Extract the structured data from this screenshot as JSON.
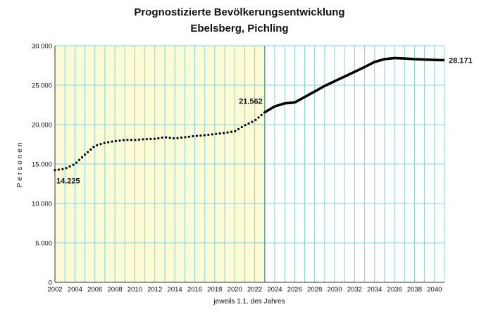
{
  "chart_data": {
    "type": "line",
    "title": "Prognostizierte Bevölkerungsentwicklung",
    "subtitle": "Ebelsberg, Pichling",
    "xlabel": "jeweils 1.1. des Jahres",
    "ylabel": "Personen",
    "xlim": [
      2002,
      2041
    ],
    "ylim": [
      0,
      30000
    ],
    "x_ticks": [
      "2002",
      "2004",
      "2006",
      "2008",
      "2010",
      "2012",
      "2014",
      "2016",
      "2018",
      "2020",
      "2022",
      "2024",
      "2026",
      "2028",
      "2030",
      "2032",
      "2034",
      "2036",
      "2038",
      "2040"
    ],
    "y_ticks": [
      "0",
      "5.000",
      "10.000",
      "15.000",
      "20.000",
      "25.000",
      "30.000"
    ],
    "grid": true,
    "shaded_region": {
      "x_start": 2002,
      "x_end": 2023,
      "color": "#fbfbd6"
    },
    "colors": {
      "grid": "#7fd6e0",
      "line": "#000000",
      "shade": "#fbfbd6"
    },
    "series": [
      {
        "style": "dotted",
        "x": [
          2002,
          2003,
          2004,
          2005,
          2006,
          2007,
          2008,
          2009,
          2010,
          2011,
          2012,
          2013,
          2014,
          2015,
          2016,
          2017,
          2018,
          2019,
          2020,
          2021,
          2022,
          2023
        ],
        "values": [
          14225,
          14400,
          15000,
          16200,
          17300,
          17700,
          17900,
          18050,
          18050,
          18150,
          18200,
          18400,
          18250,
          18400,
          18550,
          18650,
          18800,
          18950,
          19150,
          19900,
          20500,
          21562
        ]
      },
      {
        "style": "solid",
        "x": [
          2023,
          2024,
          2025,
          2026,
          2027,
          2028,
          2029,
          2030,
          2031,
          2032,
          2033,
          2034,
          2035,
          2036,
          2037,
          2038,
          2039,
          2040,
          2041
        ],
        "values": [
          21562,
          22300,
          22700,
          22800,
          23500,
          24200,
          24900,
          25500,
          26100,
          26700,
          27300,
          27950,
          28300,
          28450,
          28380,
          28300,
          28250,
          28200,
          28171
        ]
      }
    ],
    "annotations": [
      {
        "text": "14.225",
        "x": 2002,
        "y": 14225
      },
      {
        "text": "21.562",
        "x": 2023,
        "y": 21562
      },
      {
        "text": "28.171",
        "x": 2041,
        "y": 28171
      }
    ]
  }
}
